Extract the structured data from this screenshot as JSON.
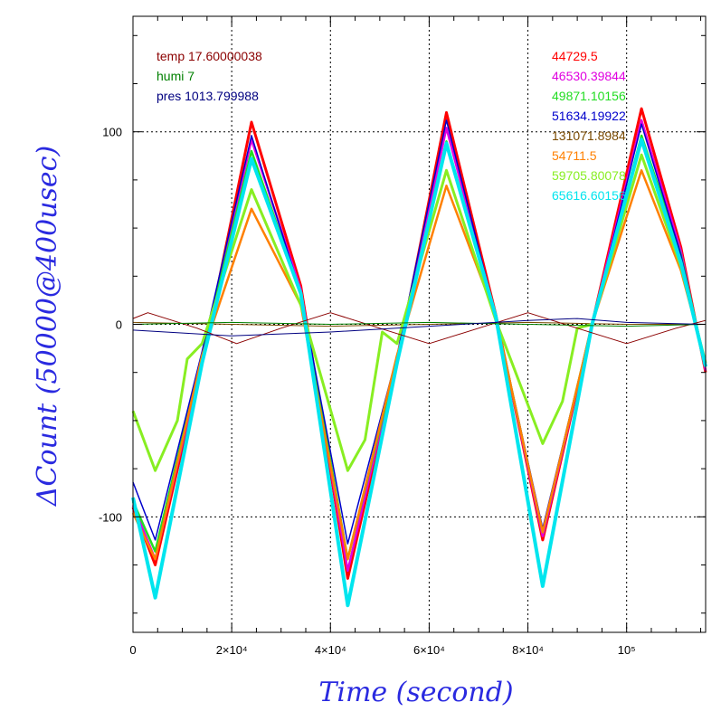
{
  "chart_data": {
    "type": "line",
    "xlabel": "Time (second)",
    "ylabel": "ΔCount (50000@400usec)",
    "xlim": [
      0,
      116000
    ],
    "ylim": [
      -160,
      160
    ],
    "grid": true,
    "x_ticks": [
      {
        "value": 0,
        "label": "0"
      },
      {
        "value": 20000,
        "label": "2×10⁴"
      },
      {
        "value": 40000,
        "label": "4×10⁴"
      },
      {
        "value": 60000,
        "label": "6×10⁴"
      },
      {
        "value": 80000,
        "label": "8×10⁴"
      },
      {
        "value": 100000,
        "label": "10⁵"
      }
    ],
    "y_ticks": [
      {
        "value": 100,
        "label": "100"
      },
      {
        "value": 0,
        "label": "0"
      },
      {
        "value": -100,
        "label": "-100"
      }
    ],
    "env_legend": [
      {
        "label": "temp 17.60000038",
        "color": "#8b0000"
      },
      {
        "label": "humi 7",
        "color": "#008000"
      },
      {
        "label": "pres 1013.799988",
        "color": "#000080"
      }
    ],
    "series_legend": [
      {
        "label": "44729.5",
        "color": "#ff0000"
      },
      {
        "label": "46530.39844",
        "color": "#e000e0"
      },
      {
        "label": "49871.10156",
        "color": "#22dd22"
      },
      {
        "label": "51634.19922",
        "color": "#0000cc"
      },
      {
        "label": "131071.8984",
        "color": "#7a4a00"
      },
      {
        "label": "54711.5",
        "color": "#ff8000"
      },
      {
        "label": "59705.80078",
        "color": "#88ee22"
      },
      {
        "label": "65616.60156",
        "color": "#00e5ee"
      }
    ],
    "series": [
      {
        "name": "44729.5",
        "color": "#ff0000",
        "width": 3,
        "points": [
          [
            0,
            -95
          ],
          [
            4500,
            -125
          ],
          [
            14000,
            -20
          ],
          [
            24000,
            105
          ],
          [
            34000,
            20
          ],
          [
            43500,
            -132
          ],
          [
            53500,
            -20
          ],
          [
            63500,
            110
          ],
          [
            73500,
            5
          ],
          [
            83000,
            -112
          ],
          [
            93000,
            0
          ],
          [
            103000,
            112
          ],
          [
            111000,
            40
          ],
          [
            116000,
            -25
          ]
        ]
      },
      {
        "name": "46530.39844",
        "color": "#e000e0",
        "width": 2.5,
        "points": [
          [
            0,
            -94
          ],
          [
            4500,
            -122
          ],
          [
            14000,
            -18
          ],
          [
            24000,
            96
          ],
          [
            34000,
            18
          ],
          [
            43500,
            -128
          ],
          [
            53500,
            -18
          ],
          [
            63500,
            102
          ],
          [
            73500,
            4
          ],
          [
            83000,
            -110
          ],
          [
            93000,
            0
          ],
          [
            103000,
            106
          ],
          [
            111000,
            38
          ],
          [
            116000,
            -24
          ]
        ]
      },
      {
        "name": "49871.10156",
        "color": "#22dd22",
        "width": 2.5,
        "points": [
          [
            0,
            -92
          ],
          [
            4500,
            -118
          ],
          [
            14000,
            -16
          ],
          [
            24000,
            90
          ],
          [
            34000,
            16
          ],
          [
            43500,
            -122
          ],
          [
            53500,
            -18
          ],
          [
            63500,
            95
          ],
          [
            73500,
            4
          ],
          [
            83000,
            -108
          ],
          [
            93000,
            0
          ],
          [
            103000,
            98
          ],
          [
            111000,
            36
          ],
          [
            116000,
            -22
          ]
        ]
      },
      {
        "name": "51634.19922",
        "color": "#0000cc",
        "width": 1.5,
        "points": [
          [
            0,
            -82
          ],
          [
            4500,
            -112
          ],
          [
            14000,
            -14
          ],
          [
            24000,
            98
          ],
          [
            34000,
            16
          ],
          [
            43500,
            -114
          ],
          [
            53500,
            -16
          ],
          [
            63500,
            106
          ],
          [
            73500,
            4
          ],
          [
            83000,
            -106
          ],
          [
            93000,
            0
          ],
          [
            103000,
            104
          ],
          [
            111000,
            36
          ],
          [
            116000,
            -22
          ]
        ]
      },
      {
        "name": "131071.8984",
        "color": "#7a4a00",
        "width": 1,
        "points": [
          [
            0,
            1
          ],
          [
            20000,
            0
          ],
          [
            40000,
            -1
          ],
          [
            60000,
            0
          ],
          [
            80000,
            1
          ],
          [
            100000,
            0
          ],
          [
            116000,
            0
          ]
        ]
      },
      {
        "name": "54711.5",
        "color": "#ff8000",
        "width": 2.5,
        "points": [
          [
            0,
            -98
          ],
          [
            4500,
            -122
          ],
          [
            14000,
            -16
          ],
          [
            24000,
            60
          ],
          [
            34000,
            10
          ],
          [
            43500,
            -122
          ],
          [
            53500,
            -16
          ],
          [
            63500,
            72
          ],
          [
            73500,
            4
          ],
          [
            83000,
            -108
          ],
          [
            93000,
            0
          ],
          [
            103000,
            80
          ],
          [
            111000,
            28
          ],
          [
            116000,
            -20
          ]
        ]
      },
      {
        "name": "59705.80078",
        "color": "#88ee22",
        "width": 3,
        "points": [
          [
            0,
            -45
          ],
          [
            4500,
            -76
          ],
          [
            9000,
            -50
          ],
          [
            11000,
            -18
          ],
          [
            14000,
            -10
          ],
          [
            24000,
            70
          ],
          [
            34000,
            10
          ],
          [
            43500,
            -76
          ],
          [
            47000,
            -60
          ],
          [
            50500,
            -4
          ],
          [
            53500,
            -10
          ],
          [
            63500,
            80
          ],
          [
            73500,
            2
          ],
          [
            83000,
            -62
          ],
          [
            87000,
            -40
          ],
          [
            90000,
            -2
          ],
          [
            93000,
            0
          ],
          [
            103000,
            88
          ],
          [
            111000,
            30
          ],
          [
            116000,
            -20
          ]
        ]
      },
      {
        "name": "65616.60156",
        "color": "#00e5ee",
        "width": 4,
        "points": [
          [
            0,
            -90
          ],
          [
            4500,
            -142
          ],
          [
            14000,
            -20
          ],
          [
            24000,
            86
          ],
          [
            34000,
            16
          ],
          [
            43500,
            -146
          ],
          [
            53500,
            -20
          ],
          [
            63500,
            94
          ],
          [
            73500,
            4
          ],
          [
            83000,
            -136
          ],
          [
            93000,
            0
          ],
          [
            103000,
            96
          ],
          [
            111000,
            32
          ],
          [
            116000,
            -22
          ]
        ]
      },
      {
        "name": "temp 17.60000038",
        "color": "#8b0000",
        "width": 1,
        "points": [
          [
            0,
            3
          ],
          [
            3000,
            6
          ],
          [
            13000,
            -2
          ],
          [
            21000,
            -10
          ],
          [
            30000,
            -2
          ],
          [
            40000,
            6
          ],
          [
            50000,
            -2
          ],
          [
            60000,
            -10
          ],
          [
            70000,
            -2
          ],
          [
            80000,
            6
          ],
          [
            90000,
            -2
          ],
          [
            100000,
            -10
          ],
          [
            110000,
            -2
          ],
          [
            116000,
            2
          ]
        ]
      },
      {
        "name": "humi 7",
        "color": "#008000",
        "width": 1,
        "points": [
          [
            0,
            0
          ],
          [
            20000,
            1
          ],
          [
            40000,
            0
          ],
          [
            60000,
            1
          ],
          [
            80000,
            0
          ],
          [
            100000,
            -1
          ],
          [
            116000,
            0
          ]
        ]
      },
      {
        "name": "pres 1013.799988",
        "color": "#000080",
        "width": 1,
        "points": [
          [
            0,
            -3
          ],
          [
            20000,
            -6
          ],
          [
            40000,
            -4
          ],
          [
            60000,
            -1
          ],
          [
            80000,
            2
          ],
          [
            90000,
            3
          ],
          [
            100000,
            1
          ],
          [
            116000,
            0
          ]
        ]
      }
    ]
  }
}
